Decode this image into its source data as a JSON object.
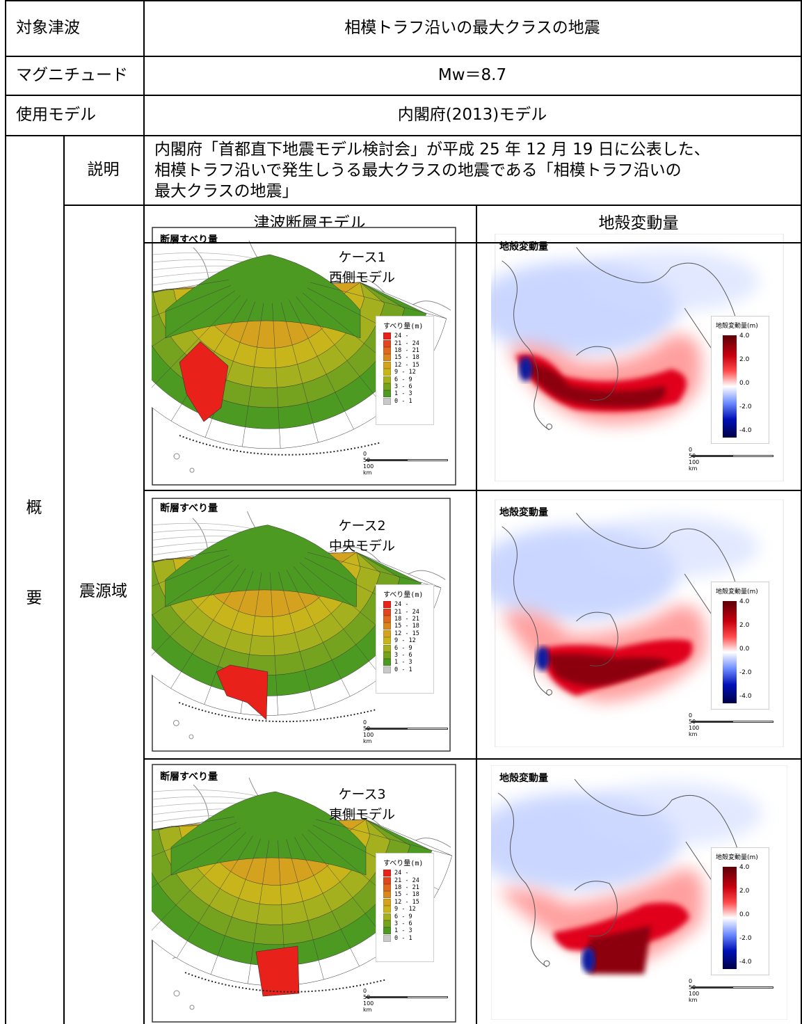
{
  "rows": {
    "target": {
      "label": "対象津波",
      "value": "相模トラフ沿いの最大クラスの地震"
    },
    "magnitude": {
      "label": "マグニチュード",
      "value": "Mw＝8.7"
    },
    "model": {
      "label": "使用モデル",
      "value": "内閣府(2013)モデル"
    },
    "overview_label_1": "概",
    "overview_label_2": "要",
    "explanation": {
      "label": "説明",
      "lines": [
        "内閣府「首都直下地震モデル検討会」が平成 25 年 12 月 19 日に公表した、",
        "相模トラフ沿いで発生しうる最大クラスの地震である「相模トラフ沿いの",
        "最大クラスの地震」"
      ]
    },
    "source_area": {
      "label": "震源域",
      "col_headers": [
        "津波断層モデル",
        "地殻変動量"
      ]
    }
  },
  "fault_panel_title": "断層すべり量",
  "deform_panel_title": "地殻変動量",
  "cases": [
    {
      "line1": "ケース1",
      "line2": "西側モデル"
    },
    {
      "line1": "ケース2",
      "line2": "中央モデル"
    },
    {
      "line1": "ケース3",
      "line2": "東側モデル"
    }
  ],
  "slip_legend": {
    "title": "すべり量(m)",
    "entries": [
      {
        "range": "24 -",
        "color": "#e8221b"
      },
      {
        "range": "21 - 24",
        "color": "#e2461e"
      },
      {
        "range": "18 - 21",
        "color": "#df6a1f"
      },
      {
        "range": "15 - 18",
        "color": "#d9861f"
      },
      {
        "range": "12 - 15",
        "color": "#d4a21e"
      },
      {
        "range": "9 - 12",
        "color": "#c8b51c"
      },
      {
        "range": "6 - 9",
        "color": "#a4b01d"
      },
      {
        "range": "3 - 6",
        "color": "#75a21f"
      },
      {
        "range": "1 - 3",
        "color": "#4c9a22"
      },
      {
        "range": "0 - 1",
        "color": "#c9c9c9"
      }
    ]
  },
  "deform_legend": {
    "title": "地殻変動量(m)",
    "ticks": [
      "4.0",
      "2.0",
      "0.0",
      "-2.0",
      "-4.0"
    ]
  },
  "scale_bar": {
    "ticks": [
      "0",
      "50",
      "100"
    ],
    "unit": "km"
  }
}
